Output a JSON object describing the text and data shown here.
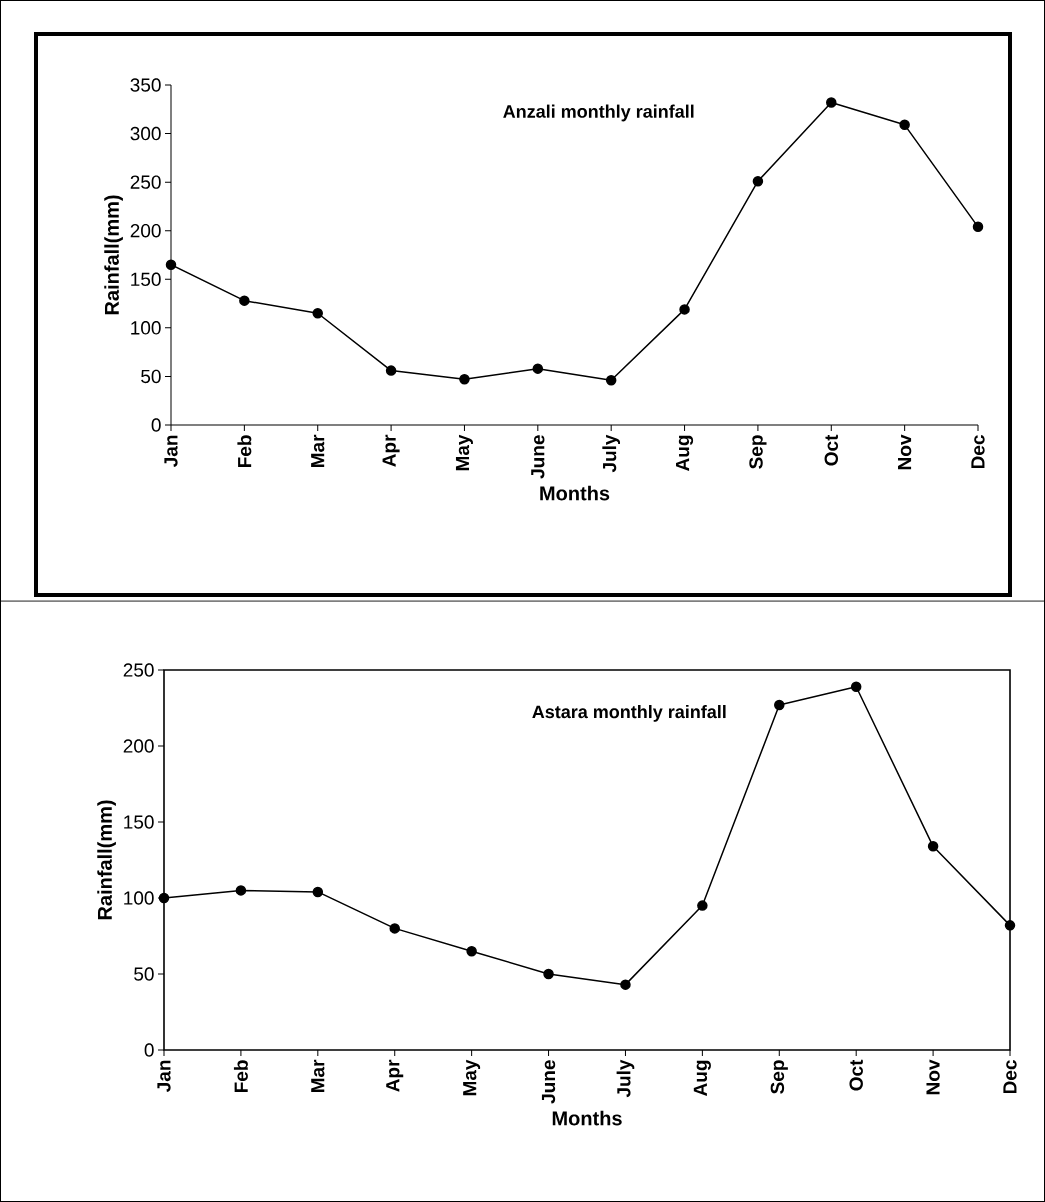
{
  "chart_data": [
    {
      "type": "line",
      "title": "Anzali monthly rainfall",
      "xlabel": "Months",
      "ylabel": "Rainfall(mm)",
      "categories": [
        "Jan",
        "Feb",
        "Mar",
        "Apr",
        "May",
        "June",
        "July",
        "Aug",
        "Sep",
        "Oct",
        "Nov",
        "Dec"
      ],
      "values": [
        165,
        128,
        115,
        56,
        47,
        58,
        46,
        119,
        251,
        332,
        309,
        204
      ],
      "color": "#000000",
      "ylim": [
        0,
        350
      ],
      "yticks": [
        0,
        50,
        100,
        150,
        200,
        250,
        300,
        350
      ],
      "marker": "circle",
      "grid": false
    },
    {
      "type": "line",
      "title": "Astara monthly rainfall",
      "xlabel": "Months",
      "ylabel": "Rainfall(mm)",
      "categories": [
        "Jan",
        "Feb",
        "Mar",
        "Apr",
        "May",
        "June",
        "July",
        "Aug",
        "Sep",
        "Oct",
        "Nov",
        "Dec"
      ],
      "values": [
        100,
        105,
        104,
        80,
        65,
        50,
        43,
        95,
        227,
        239,
        134,
        82
      ],
      "color": "#000000",
      "ylim": [
        0,
        250
      ],
      "yticks": [
        0,
        50,
        100,
        150,
        200,
        250
      ],
      "marker": "circle",
      "grid": false
    }
  ]
}
